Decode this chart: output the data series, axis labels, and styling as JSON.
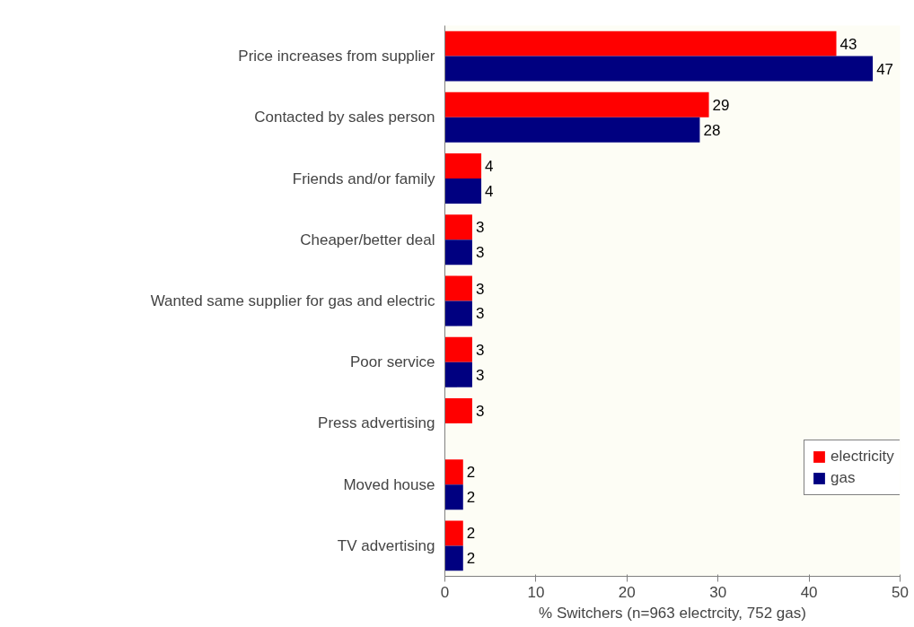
{
  "chart_data": {
    "type": "bar",
    "orientation": "horizontal",
    "xlabel": "% Switchers (n=963 electrcity, 752 gas)",
    "categories": [
      "Price increases from supplier",
      "Contacted by sales person",
      "Friends and/or family",
      "Cheaper/better deal",
      "Wanted same supplier for gas and electric",
      "Poor service",
      "Press advertising",
      "Moved house",
      "TV advertising"
    ],
    "series": [
      {
        "name": "electricity",
        "color": "#ff0000",
        "values": [
          43,
          29,
          4,
          3,
          3,
          3,
          3,
          2,
          2
        ]
      },
      {
        "name": "gas",
        "color": "#000080",
        "values": [
          47,
          28,
          4,
          3,
          3,
          3,
          null,
          2,
          2
        ]
      }
    ],
    "xlim": [
      0,
      50
    ],
    "xticks": [
      0,
      10,
      20,
      30,
      40,
      50
    ],
    "grid": false,
    "legend": "right",
    "data_labels": true
  }
}
